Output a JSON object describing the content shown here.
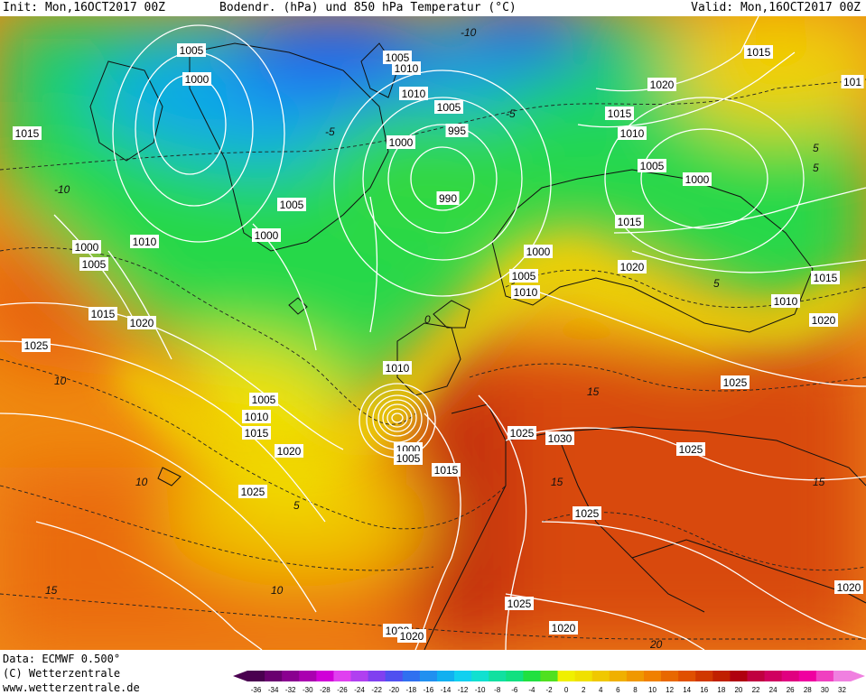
{
  "header": {
    "init": "Init: Mon,16OCT2017 00Z",
    "title": "Bodendr. (hPa) und 850 hPa Temperatur (°C)",
    "valid": "Valid: Mon,16OCT2017 00Z"
  },
  "footer": {
    "data_line": "Data: ECMWF  0.500°",
    "copyright": "(C) Wetterzentrale",
    "url": "www.wetterzentrale.de"
  },
  "colorbar": {
    "ticks": [
      "-36",
      "-34",
      "-32",
      "-30",
      "-28",
      "-26",
      "-24",
      "-22",
      "-20",
      "-18",
      "-16",
      "-14",
      "-12",
      "-10",
      "-8",
      "-6",
      "-4",
      "-2",
      "0",
      "2",
      "4",
      "6",
      "8",
      "10",
      "12",
      "14",
      "16",
      "18",
      "20",
      "22",
      "24",
      "26",
      "28",
      "30",
      "32"
    ],
    "colors": [
      "#4a0050",
      "#6a0070",
      "#8a0090",
      "#aa00b0",
      "#d000d8",
      "#e040f0",
      "#b040f0",
      "#8040f0",
      "#5050f0",
      "#3070f0",
      "#2090f0",
      "#10b0f0",
      "#10d0f0",
      "#10e0d0",
      "#10e0a0",
      "#10e080",
      "#20e040",
      "#50e020",
      "#f0f000",
      "#f0e000",
      "#f0c800",
      "#f0b000",
      "#f09800",
      "#f08000",
      "#e86800",
      "#e05000",
      "#d03800",
      "#c02000",
      "#b00010",
      "#c00040",
      "#d00060",
      "#e00080",
      "#f000a0",
      "#f040c0",
      "#f080e0"
    ]
  },
  "map": {
    "isobar_labels": [
      {
        "text": "1005"
      },
      {
        "text": "1000"
      },
      {
        "text": "1015"
      },
      {
        "text": "1005"
      },
      {
        "text": "1010"
      },
      {
        "text": "1010"
      },
      {
        "text": "1005"
      },
      {
        "text": "995"
      },
      {
        "text": "1000"
      },
      {
        "text": "990"
      },
      {
        "text": "1005"
      },
      {
        "text": "1000"
      },
      {
        "text": "1015"
      },
      {
        "text": "1020"
      },
      {
        "text": "1015"
      },
      {
        "text": "1010"
      },
      {
        "text": "1005"
      },
      {
        "text": "1000"
      },
      {
        "text": "101"
      },
      {
        "text": "1000"
      },
      {
        "text": "1010"
      },
      {
        "text": "1005"
      },
      {
        "text": "1015"
      },
      {
        "text": "1020"
      },
      {
        "text": "1025"
      },
      {
        "text": "1015"
      },
      {
        "text": "1000"
      },
      {
        "text": "1005"
      },
      {
        "text": "1010"
      },
      {
        "text": "1020"
      },
      {
        "text": "1015"
      },
      {
        "text": "1010"
      },
      {
        "text": "1020"
      },
      {
        "text": "1025"
      },
      {
        "text": "1010"
      },
      {
        "text": "1005"
      },
      {
        "text": "1010"
      },
      {
        "text": "1015"
      },
      {
        "text": "1020"
      },
      {
        "text": "1025"
      },
      {
        "text": "1000"
      },
      {
        "text": "1005"
      },
      {
        "text": "1015"
      },
      {
        "text": "1025"
      },
      {
        "text": "1030"
      },
      {
        "text": "1025"
      },
      {
        "text": "1025"
      },
      {
        "text": "1025"
      },
      {
        "text": "1020"
      },
      {
        "text": "1020"
      },
      {
        "text": "1020"
      },
      {
        "text": "1020"
      }
    ],
    "temp_labels": [
      "-10",
      "-5",
      "-10",
      "10",
      "5",
      "15",
      "10",
      "15",
      "0",
      "5",
      "-5",
      "5",
      "15",
      "20",
      "5",
      "10",
      "15"
    ]
  }
}
